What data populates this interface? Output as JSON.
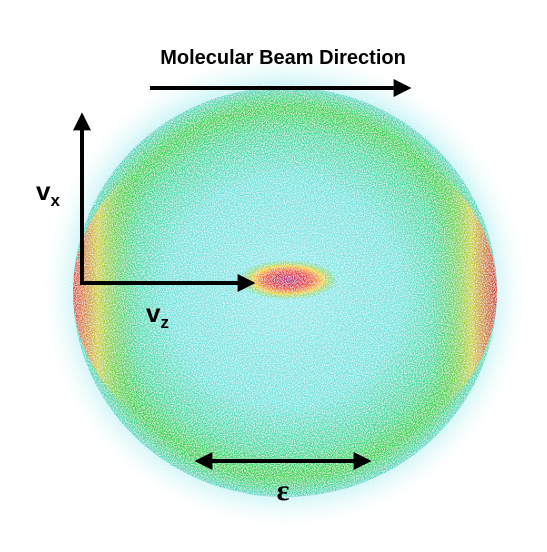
{
  "title": "Molecular Beam Direction",
  "labels": {
    "vx": {
      "main": "v",
      "sub": "x"
    },
    "vz": {
      "main": "v",
      "sub": "z"
    },
    "epsilon": "ε"
  }
}
